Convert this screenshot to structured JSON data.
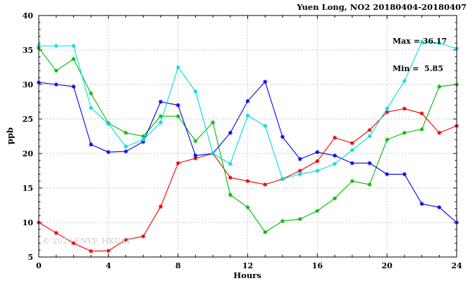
{
  "chart_data": {
    "type": "line",
    "title": "Yuen Long, NO2 20180404-20180407",
    "xlabel": "Hours",
    "ylabel": "ppb",
    "xlim": [
      0,
      24
    ],
    "ylim": [
      5,
      40
    ],
    "xticks": [
      0,
      4,
      8,
      12,
      16,
      20,
      24
    ],
    "yticks": [
      5,
      10,
      15,
      20,
      25,
      30,
      35,
      40
    ],
    "grid": true,
    "legend": "none",
    "marker": "asterisk",
    "x": [
      0,
      1,
      2,
      3,
      4,
      5,
      6,
      7,
      8,
      9,
      10,
      11,
      12,
      13,
      14,
      15,
      16,
      17,
      18,
      19,
      20,
      21,
      22,
      23,
      24
    ],
    "series": [
      {
        "name": "series-red",
        "color": "#ee0000",
        "values": [
          10.0,
          8.5,
          7.0,
          5.85,
          5.9,
          7.5,
          8.0,
          12.3,
          18.6,
          19.3,
          20.0,
          16.5,
          16.0,
          15.5,
          16.3,
          17.5,
          18.9,
          22.3,
          21.5,
          23.4,
          26.0,
          26.5,
          25.8,
          23.0,
          24.0
        ]
      },
      {
        "name": "series-green",
        "color": "#00bb00",
        "values": [
          35.3,
          32.0,
          33.7,
          28.7,
          24.4,
          23.0,
          22.5,
          25.4,
          25.4,
          21.8,
          24.5,
          14.0,
          12.2,
          8.6,
          10.2,
          10.5,
          11.7,
          13.5,
          16.0,
          15.5,
          22.0,
          23.0,
          23.5,
          29.7,
          30.0
        ]
      },
      {
        "name": "series-blue",
        "color": "#0000ee",
        "values": [
          30.3,
          30.0,
          29.7,
          21.3,
          20.2,
          20.3,
          21.7,
          27.5,
          27.0,
          19.7,
          20.0,
          23.0,
          27.6,
          30.4,
          22.4,
          19.2,
          20.2,
          19.7,
          18.6,
          18.6,
          17.0,
          17.0,
          12.7,
          12.2,
          10.0
        ]
      },
      {
        "name": "series-cyan",
        "color": "#00dddd",
        "values": [
          35.6,
          35.6,
          35.6,
          26.6,
          24.3,
          21.0,
          22.0,
          24.5,
          32.5,
          29.0,
          20.0,
          18.5,
          25.5,
          24.0,
          16.3,
          17.0,
          17.5,
          18.5,
          20.5,
          22.5,
          26.5,
          30.5,
          36.17,
          36.0,
          35.2
        ]
      }
    ],
    "annotations": {
      "max": "Max = 36.17",
      "min": "Min =  5.85"
    }
  },
  "watermark": "© 2020 ENVF, HKUST"
}
